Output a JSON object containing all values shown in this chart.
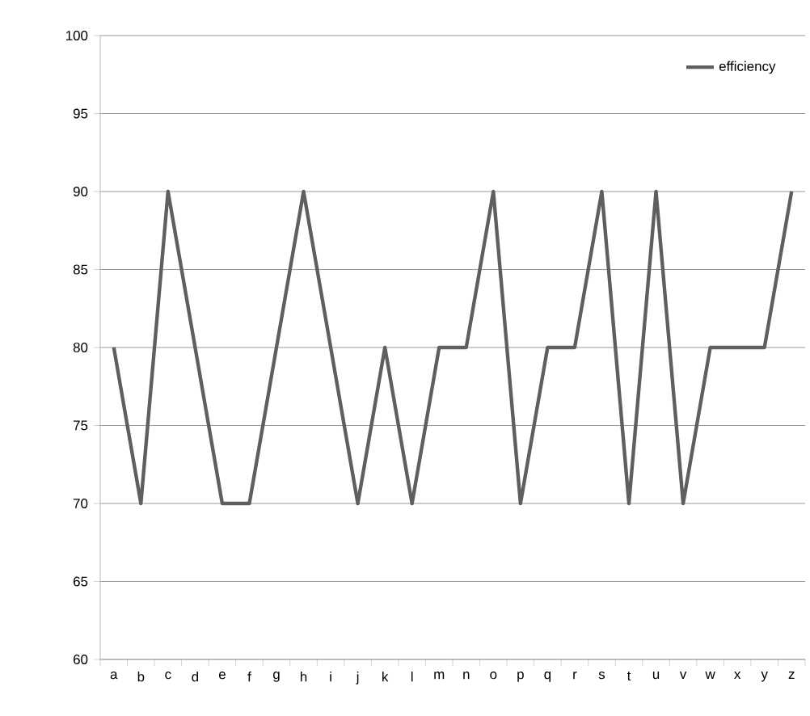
{
  "chart_data": {
    "type": "line",
    "categories": [
      "a",
      "b",
      "c",
      "d",
      "e",
      "f",
      "g",
      "h",
      "i",
      "j",
      "k",
      "l",
      "m",
      "n",
      "o",
      "p",
      "q",
      "r",
      "s",
      "t",
      "u",
      "v",
      "w",
      "x",
      "y",
      "z"
    ],
    "series": [
      {
        "name": "efficiency",
        "color": "#5f5f5f",
        "values": [
          80,
          70,
          90,
          80,
          70,
          70,
          80,
          90,
          80,
          70,
          80,
          70,
          80,
          80,
          90,
          70,
          80,
          80,
          90,
          70,
          90,
          70,
          80,
          80,
          80,
          90
        ]
      }
    ],
    "ylim": [
      60,
      100
    ],
    "yticks": [
      60,
      65,
      70,
      75,
      80,
      85,
      90,
      95,
      100
    ],
    "grid": "y",
    "legend": "top right",
    "marker": "none",
    "line_style": "solid"
  }
}
